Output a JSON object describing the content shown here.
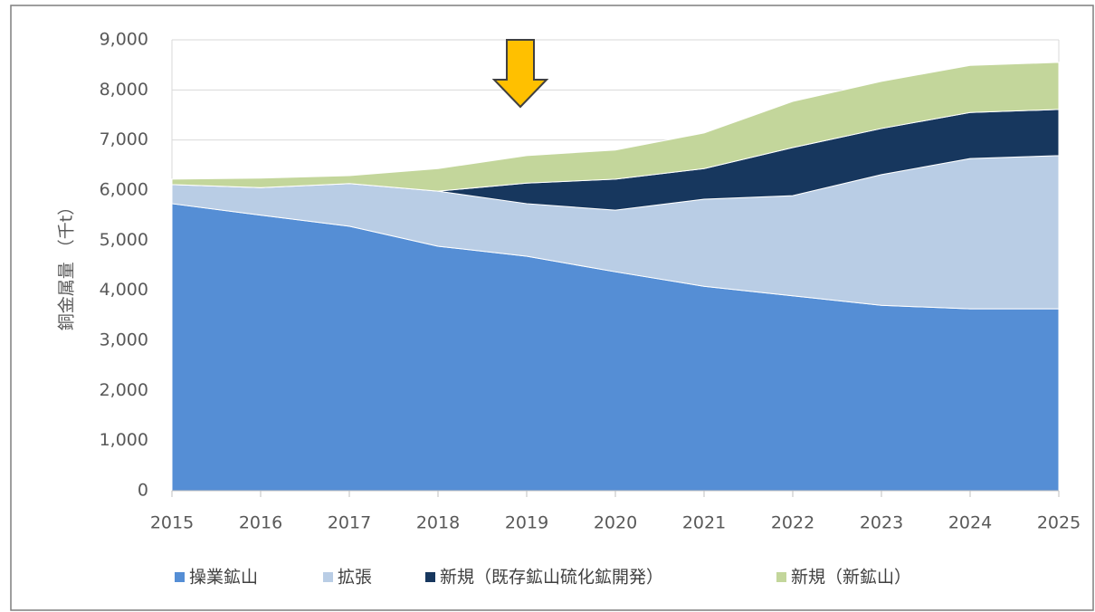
{
  "chart_data": {
    "type": "area",
    "stacked": true,
    "y_label": "銅金属量 （千t）",
    "x": [
      2015,
      2016,
      2017,
      2018,
      2019,
      2020,
      2021,
      2022,
      2023,
      2024,
      2025
    ],
    "xlim": [
      2015,
      2025
    ],
    "xticks": [
      2015,
      2016,
      2017,
      2018,
      2019,
      2020,
      2021,
      2022,
      2023,
      2024,
      2025
    ],
    "ylim": [
      0,
      9000
    ],
    "yticks": [
      0,
      {
        "value": 1000,
        "label": "1,000"
      },
      {
        "value": 2000,
        "label": "2,000"
      },
      {
        "value": 3000,
        "label": "3,000"
      },
      {
        "value": 4000,
        "label": "4,000"
      },
      {
        "value": 5000,
        "label": "5,000"
      },
      {
        "value": 6000,
        "label": "6,000"
      },
      {
        "value": 7000,
        "label": "7,000"
      },
      {
        "value": 8000,
        "label": "8,000"
      },
      {
        "value": 9000,
        "label": "9,000"
      }
    ],
    "grid": true,
    "legend": "bottom",
    "series": [
      {
        "name": "操業鉱山",
        "color": "#558ed5",
        "values": [
          5730,
          5500,
          5280,
          4880,
          4680,
          4370,
          4080,
          3890,
          3700,
          3630,
          3630
        ]
      },
      {
        "name": "拡張",
        "color": "#b9cde5",
        "values": [
          380,
          550,
          850,
          1100,
          1050,
          1230,
          1740,
          2000,
          2610,
          3000,
          3060
        ]
      },
      {
        "name": "新規（既存鉱山硫化鉱開発）",
        "color": "#17375e",
        "values": [
          0,
          0,
          0,
          0,
          410,
          620,
          610,
          960,
          920,
          920,
          920
        ]
      },
      {
        "name": "新規（新鉱山）",
        "color": "#c3d69b",
        "values": [
          110,
          190,
          160,
          450,
          550,
          580,
          710,
          920,
          940,
          940,
          940
        ]
      }
    ]
  }
}
